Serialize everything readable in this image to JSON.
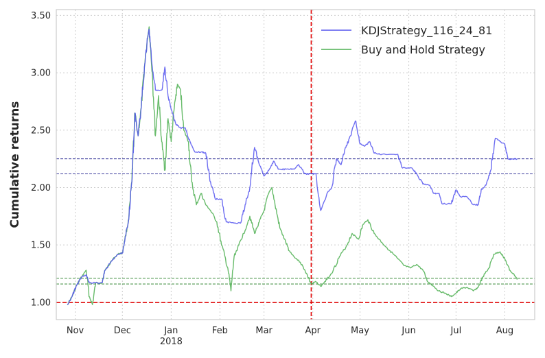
{
  "chart_data": {
    "type": "line",
    "ylabel": "Cumulative returns",
    "xlabel": "",
    "ylim": [
      0.85,
      3.55
    ],
    "grid": true,
    "legend_position": "top-right",
    "x_start": "2017-10-20",
    "x_end": "2018-08-20",
    "x_ticks": [
      {
        "date": "2017-11-01",
        "label": "Nov",
        "sublabel": ""
      },
      {
        "date": "2017-12-01",
        "label": "Dec",
        "sublabel": ""
      },
      {
        "date": "2018-01-01",
        "label": "Jan",
        "sublabel": "2018"
      },
      {
        "date": "2018-02-01",
        "label": "Feb",
        "sublabel": ""
      },
      {
        "date": "2018-03-01",
        "label": "Mar",
        "sublabel": ""
      },
      {
        "date": "2018-04-01",
        "label": "Apr",
        "sublabel": ""
      },
      {
        "date": "2018-05-01",
        "label": "May",
        "sublabel": ""
      },
      {
        "date": "2018-06-01",
        "label": "Jun",
        "sublabel": ""
      },
      {
        "date": "2018-07-01",
        "label": "Jul",
        "sublabel": ""
      },
      {
        "date": "2018-08-01",
        "label": "Aug",
        "sublabel": ""
      }
    ],
    "y_ticks": [
      {
        "value": 1.0,
        "label": "1.00"
      },
      {
        "value": 1.5,
        "label": "1.50"
      },
      {
        "value": 2.0,
        "label": "2.00"
      },
      {
        "value": 2.5,
        "label": "2.50"
      },
      {
        "value": 3.0,
        "label": "3.00"
      },
      {
        "value": 3.5,
        "label": "3.50"
      }
    ],
    "reference_lines": {
      "baseline_y": 1.0,
      "baseline_color": "#e00000",
      "split_date": "2018-03-31",
      "split_color": "#e00000",
      "blue_levels": [
        2.12,
        2.25
      ],
      "green_levels": [
        1.16,
        1.21
      ]
    },
    "series": [
      {
        "name": "KDJStrategy_116_24_81",
        "color": "#5555ee",
        "points": [
          [
            "2017-10-27",
            0.98
          ],
          [
            "2017-10-30",
            1.05
          ],
          [
            "2017-11-02",
            1.15
          ],
          [
            "2017-11-05",
            1.22
          ],
          [
            "2017-11-08",
            1.24
          ],
          [
            "2017-11-10",
            1.17
          ],
          [
            "2017-11-14",
            1.17
          ],
          [
            "2017-11-18",
            1.17
          ],
          [
            "2017-11-20",
            1.28
          ],
          [
            "2017-11-24",
            1.36
          ],
          [
            "2017-11-28",
            1.42
          ],
          [
            "2017-12-01",
            1.43
          ],
          [
            "2017-12-03",
            1.58
          ],
          [
            "2017-12-05",
            1.72
          ],
          [
            "2017-12-07",
            2.05
          ],
          [
            "2017-12-09",
            2.65
          ],
          [
            "2017-12-11",
            2.45
          ],
          [
            "2017-12-13",
            2.7
          ],
          [
            "2017-12-15",
            3.05
          ],
          [
            "2017-12-17",
            3.3
          ],
          [
            "2017-12-18",
            3.38
          ],
          [
            "2017-12-20",
            3.05
          ],
          [
            "2017-12-22",
            2.85
          ],
          [
            "2017-12-26",
            2.85
          ],
          [
            "2017-12-28",
            3.05
          ],
          [
            "2017-12-30",
            2.8
          ],
          [
            "2018-01-01",
            2.68
          ],
          [
            "2018-01-04",
            2.55
          ],
          [
            "2018-01-07",
            2.52
          ],
          [
            "2018-01-10",
            2.52
          ],
          [
            "2018-01-13",
            2.4
          ],
          [
            "2018-01-16",
            2.31
          ],
          [
            "2018-01-20",
            2.31
          ],
          [
            "2018-01-23",
            2.3
          ],
          [
            "2018-01-26",
            2.05
          ],
          [
            "2018-01-29",
            1.9
          ],
          [
            "2018-02-02",
            1.9
          ],
          [
            "2018-02-05",
            1.7
          ],
          [
            "2018-02-10",
            1.69
          ],
          [
            "2018-02-14",
            1.69
          ],
          [
            "2018-02-17",
            1.85
          ],
          [
            "2018-02-20",
            2.0
          ],
          [
            "2018-02-23",
            2.35
          ],
          [
            "2018-02-26",
            2.2
          ],
          [
            "2018-03-01",
            2.1
          ],
          [
            "2018-03-04",
            2.15
          ],
          [
            "2018-03-07",
            2.23
          ],
          [
            "2018-03-10",
            2.16
          ],
          [
            "2018-03-15",
            2.16
          ],
          [
            "2018-03-20",
            2.16
          ],
          [
            "2018-03-23",
            2.2
          ],
          [
            "2018-03-27",
            2.12
          ],
          [
            "2018-03-31",
            2.12
          ],
          [
            "2018-04-03",
            2.12
          ],
          [
            "2018-04-06",
            1.8
          ],
          [
            "2018-04-10",
            1.95
          ],
          [
            "2018-04-13",
            2.0
          ],
          [
            "2018-04-16",
            2.25
          ],
          [
            "2018-04-19",
            2.2
          ],
          [
            "2018-04-22",
            2.35
          ],
          [
            "2018-04-25",
            2.45
          ],
          [
            "2018-04-28",
            2.58
          ],
          [
            "2018-05-01",
            2.38
          ],
          [
            "2018-05-04",
            2.36
          ],
          [
            "2018-05-07",
            2.4
          ],
          [
            "2018-05-10",
            2.3
          ],
          [
            "2018-05-15",
            2.29
          ],
          [
            "2018-05-25",
            2.29
          ],
          [
            "2018-05-28",
            2.17
          ],
          [
            "2018-06-03",
            2.17
          ],
          [
            "2018-06-06",
            2.12
          ],
          [
            "2018-06-10",
            2.03
          ],
          [
            "2018-06-14",
            2.02
          ],
          [
            "2018-06-17",
            1.95
          ],
          [
            "2018-06-20",
            1.95
          ],
          [
            "2018-06-22",
            1.86
          ],
          [
            "2018-06-28",
            1.86
          ],
          [
            "2018-07-01",
            1.98
          ],
          [
            "2018-07-04",
            1.92
          ],
          [
            "2018-07-08",
            1.92
          ],
          [
            "2018-07-12",
            1.85
          ],
          [
            "2018-07-15",
            1.85
          ],
          [
            "2018-07-17",
            1.98
          ],
          [
            "2018-07-20",
            2.02
          ],
          [
            "2018-07-23",
            2.15
          ],
          [
            "2018-07-26",
            2.43
          ],
          [
            "2018-07-29",
            2.4
          ],
          [
            "2018-08-01",
            2.38
          ],
          [
            "2018-08-03",
            2.25
          ],
          [
            "2018-08-09",
            2.25
          ]
        ]
      },
      {
        "name": "Buy and Hold Strategy",
        "color": "#4caf50",
        "points": [
          [
            "2017-10-27",
            0.98
          ],
          [
            "2017-10-30",
            1.05
          ],
          [
            "2017-11-02",
            1.15
          ],
          [
            "2017-11-05",
            1.22
          ],
          [
            "2017-11-08",
            1.28
          ],
          [
            "2017-11-10",
            1.05
          ],
          [
            "2017-11-12",
            0.98
          ],
          [
            "2017-11-14",
            1.17
          ],
          [
            "2017-11-18",
            1.17
          ],
          [
            "2017-11-20",
            1.28
          ],
          [
            "2017-11-24",
            1.36
          ],
          [
            "2017-11-28",
            1.42
          ],
          [
            "2017-12-01",
            1.43
          ],
          [
            "2017-12-03",
            1.58
          ],
          [
            "2017-12-05",
            1.72
          ],
          [
            "2017-12-07",
            2.05
          ],
          [
            "2017-12-09",
            2.65
          ],
          [
            "2017-12-11",
            2.45
          ],
          [
            "2017-12-13",
            2.7
          ],
          [
            "2017-12-15",
            3.05
          ],
          [
            "2017-12-17",
            3.3
          ],
          [
            "2017-12-18",
            3.4
          ],
          [
            "2017-12-20",
            3.0
          ],
          [
            "2017-12-22",
            2.45
          ],
          [
            "2017-12-24",
            2.8
          ],
          [
            "2017-12-26",
            2.4
          ],
          [
            "2017-12-28",
            2.15
          ],
          [
            "2017-12-30",
            2.6
          ],
          [
            "2018-01-01",
            2.4
          ],
          [
            "2018-01-03",
            2.7
          ],
          [
            "2018-01-05",
            2.9
          ],
          [
            "2018-01-07",
            2.85
          ],
          [
            "2018-01-09",
            2.5
          ],
          [
            "2018-01-12",
            2.4
          ],
          [
            "2018-01-14",
            2.05
          ],
          [
            "2018-01-17",
            1.85
          ],
          [
            "2018-01-20",
            1.95
          ],
          [
            "2018-01-23",
            1.85
          ],
          [
            "2018-01-26",
            1.8
          ],
          [
            "2018-01-30",
            1.7
          ],
          [
            "2018-02-02",
            1.5
          ],
          [
            "2018-02-06",
            1.3
          ],
          [
            "2018-02-08",
            1.1
          ],
          [
            "2018-02-10",
            1.4
          ],
          [
            "2018-02-13",
            1.5
          ],
          [
            "2018-02-16",
            1.6
          ],
          [
            "2018-02-20",
            1.75
          ],
          [
            "2018-02-23",
            1.6
          ],
          [
            "2018-02-26",
            1.7
          ],
          [
            "2018-03-01",
            1.8
          ],
          [
            "2018-03-04",
            1.95
          ],
          [
            "2018-03-06",
            2.0
          ],
          [
            "2018-03-08",
            1.85
          ],
          [
            "2018-03-11",
            1.65
          ],
          [
            "2018-03-14",
            1.55
          ],
          [
            "2018-03-17",
            1.45
          ],
          [
            "2018-03-20",
            1.4
          ],
          [
            "2018-03-24",
            1.35
          ],
          [
            "2018-03-27",
            1.28
          ],
          [
            "2018-03-31",
            1.16
          ],
          [
            "2018-04-03",
            1.18
          ],
          [
            "2018-04-06",
            1.14
          ],
          [
            "2018-04-10",
            1.2
          ],
          [
            "2018-04-14",
            1.28
          ],
          [
            "2018-04-18",
            1.4
          ],
          [
            "2018-04-22",
            1.48
          ],
          [
            "2018-04-26",
            1.6
          ],
          [
            "2018-04-30",
            1.55
          ],
          [
            "2018-05-03",
            1.68
          ],
          [
            "2018-05-06",
            1.72
          ],
          [
            "2018-05-10",
            1.6
          ],
          [
            "2018-05-15",
            1.52
          ],
          [
            "2018-05-20",
            1.45
          ],
          [
            "2018-05-25",
            1.38
          ],
          [
            "2018-05-29",
            1.32
          ],
          [
            "2018-06-02",
            1.3
          ],
          [
            "2018-06-06",
            1.33
          ],
          [
            "2018-06-10",
            1.28
          ],
          [
            "2018-06-13",
            1.18
          ],
          [
            "2018-06-16",
            1.15
          ],
          [
            "2018-06-20",
            1.1
          ],
          [
            "2018-06-24",
            1.08
          ],
          [
            "2018-06-28",
            1.05
          ],
          [
            "2018-07-01",
            1.08
          ],
          [
            "2018-07-04",
            1.12
          ],
          [
            "2018-07-08",
            1.13
          ],
          [
            "2018-07-12",
            1.1
          ],
          [
            "2018-07-15",
            1.13
          ],
          [
            "2018-07-18",
            1.22
          ],
          [
            "2018-07-22",
            1.3
          ],
          [
            "2018-07-25",
            1.42
          ],
          [
            "2018-07-29",
            1.44
          ],
          [
            "2018-08-01",
            1.38
          ],
          [
            "2018-08-04",
            1.28
          ],
          [
            "2018-08-07",
            1.24
          ],
          [
            "2018-08-09",
            1.2
          ]
        ]
      }
    ]
  }
}
